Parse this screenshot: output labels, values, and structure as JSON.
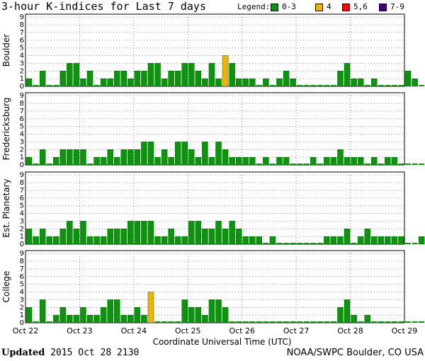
{
  "title": "3-hour K-indices for Last 7 days",
  "legend": {
    "label": "Legend:",
    "items": [
      {
        "label": "0-3",
        "color": "#0a960a"
      },
      {
        "label": "4",
        "color": "#f0b400"
      },
      {
        "label": "5,6",
        "color": "#ff0000"
      },
      {
        "label": "7-9",
        "color": "#400080"
      }
    ]
  },
  "footer": {
    "updated_label": "Updated",
    "updated_value": "2015 Oct 28 2130",
    "source": "NOAA/SWPC Boulder, CO USA"
  },
  "chart_data": {
    "type": "bar",
    "xlabel": "Coordinate Universal Time (UTC)",
    "x_tick_labels": [
      "Oct 22",
      "Oct 23",
      "Oct 24",
      "Oct 25",
      "Oct 26",
      "Oct 27",
      "Oct 28",
      "Oct 29"
    ],
    "ylim": [
      0,
      9
    ],
    "y_ticks": [
      "0",
      "1",
      "2",
      "3",
      "4",
      "5",
      "6",
      "7",
      "8",
      "9"
    ],
    "interval_hours": 3,
    "color_levels": [
      {
        "min": 0,
        "max": 3,
        "color": "#0a960a"
      },
      {
        "min": 4,
        "max": 4,
        "color": "#f0b400"
      },
      {
        "min": 5,
        "max": 6,
        "color": "#ff0000"
      },
      {
        "min": 7,
        "max": 9,
        "color": "#400080"
      }
    ],
    "panels": [
      {
        "name": "Boulder",
        "values": [
          1,
          0,
          2,
          0,
          0,
          2,
          3,
          3,
          1,
          2,
          0,
          1,
          1,
          2,
          2,
          1,
          2,
          2,
          3,
          3,
          1,
          2,
          2,
          3,
          3,
          2,
          1,
          3,
          1,
          4,
          3,
          1,
          1,
          1,
          0,
          1,
          0,
          1,
          2,
          1,
          0,
          0,
          0,
          0,
          0,
          0,
          2,
          3,
          1,
          1,
          0,
          1,
          0,
          0,
          0,
          0,
          2,
          1,
          0
        ]
      },
      {
        "name": "Fredericksburg",
        "values": [
          1,
          0,
          2,
          0,
          1,
          2,
          2,
          2,
          2,
          0,
          1,
          1,
          2,
          1,
          2,
          2,
          2,
          3,
          3,
          1,
          2,
          1,
          3,
          3,
          2,
          1,
          3,
          1,
          3,
          2,
          1,
          1,
          1,
          1,
          0,
          1,
          0,
          1,
          1,
          0,
          0,
          0,
          1,
          0,
          1,
          1,
          2,
          1,
          1,
          1,
          0,
          1,
          0,
          1,
          1,
          0,
          0,
          0,
          0
        ]
      },
      {
        "name": "Est. Planetary",
        "values": [
          2,
          1,
          2,
          1,
          1,
          2,
          3,
          2,
          3,
          1,
          1,
          1,
          2,
          2,
          2,
          3,
          3,
          3,
          3,
          1,
          1,
          2,
          1,
          1,
          3,
          3,
          2,
          2,
          3,
          2,
          3,
          2,
          1,
          1,
          1,
          0,
          1,
          0,
          0,
          0,
          0,
          0,
          0,
          0,
          1,
          1,
          1,
          2,
          0,
          1,
          2,
          1,
          1,
          1,
          1,
          1,
          0,
          0,
          1
        ]
      },
      {
        "name": "College",
        "values": [
          2,
          0,
          3,
          0,
          1,
          2,
          1,
          1,
          2,
          1,
          1,
          2,
          3,
          3,
          1,
          1,
          2,
          1,
          4,
          0,
          0,
          0,
          0,
          3,
          2,
          2,
          1,
          3,
          3,
          2,
          0,
          0,
          0,
          0,
          0,
          0,
          0,
          0,
          0,
          0,
          0,
          0,
          0,
          0,
          0,
          0,
          2,
          3,
          1,
          0,
          1,
          0,
          0,
          0,
          0,
          0,
          0,
          0,
          0
        ]
      }
    ]
  }
}
